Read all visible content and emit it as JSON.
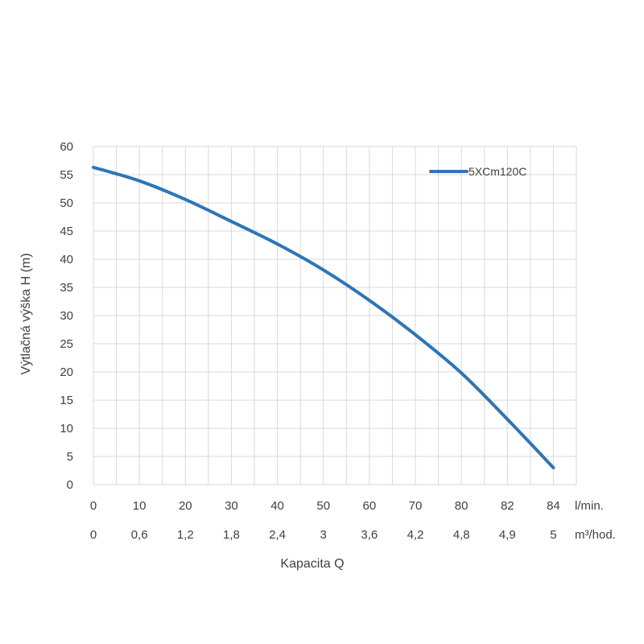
{
  "chart_data": {
    "type": "line",
    "ylabel": "Výtlačná výška H (m)",
    "xlabel": "Kapacita Q",
    "ylim": [
      0,
      60
    ],
    "yticks": [
      "0",
      "5",
      "10",
      "15",
      "20",
      "25",
      "30",
      "35",
      "40",
      "45",
      "50",
      "55",
      "60"
    ],
    "categories": [
      "0",
      "10",
      "20",
      "30",
      "40",
      "50",
      "60",
      "70",
      "80",
      "82",
      "84"
    ],
    "x_unit": "l/min.",
    "categories_secondary": [
      "0",
      "0,6",
      "1,2",
      "1,8",
      "2,4",
      "3",
      "3,6",
      "4,2",
      "4,8",
      "4,9",
      "5"
    ],
    "x_unit_secondary": "m³/hod.",
    "series": [
      {
        "name": "5XCm120C",
        "values": [
          56.3,
          53.9,
          50.6,
          46.7,
          42.7,
          38.1,
          32.7,
          26.6,
          19.8,
          11.6,
          3.0
        ]
      }
    ],
    "grid": true,
    "legend": "top-right",
    "series_color": "#2e75b6",
    "grid_color": "#d9d9d9"
  }
}
